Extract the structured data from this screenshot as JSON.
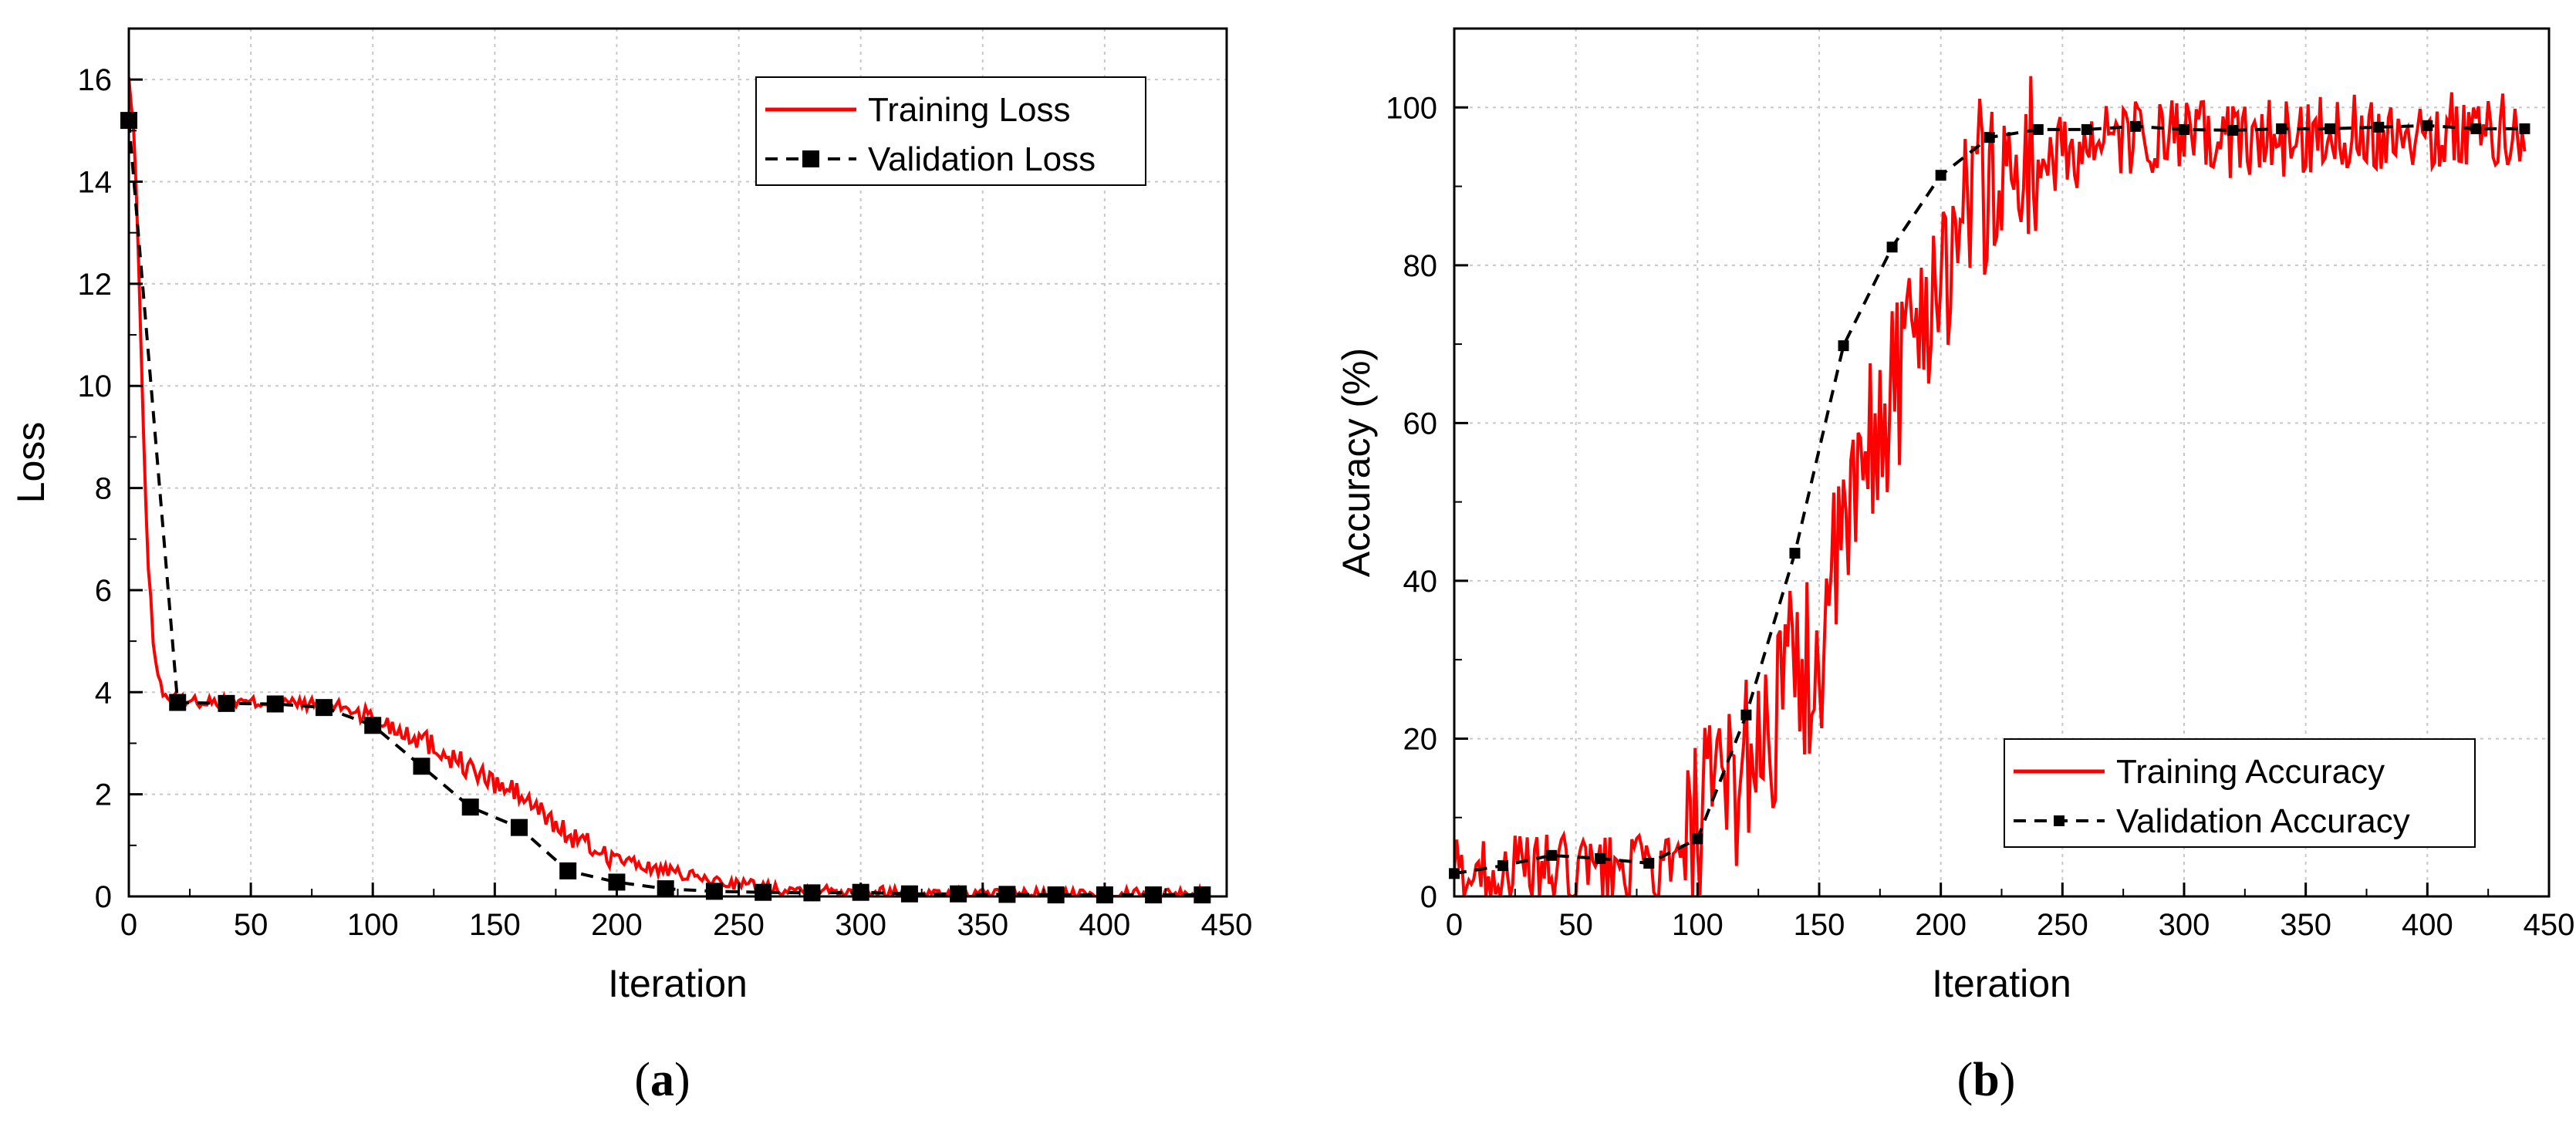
{
  "chart_data": [
    {
      "id": "a",
      "type": "line",
      "caption_letter": "a",
      "xlabel": "Iteration",
      "ylabel": "Loss",
      "xlim": [
        0,
        450
      ],
      "ylim": [
        0,
        17
      ],
      "xticks": [
        0,
        50,
        100,
        150,
        200,
        250,
        300,
        350,
        400,
        450
      ],
      "yticks": [
        0,
        2,
        4,
        6,
        8,
        10,
        12,
        14,
        16
      ],
      "grid": true,
      "legend_position": "top-right",
      "series": [
        {
          "name": "Training Loss",
          "style": "solid",
          "color": "#ff0000",
          "noise": 0.12,
          "x": [
            0,
            2,
            4,
            6,
            8,
            10,
            12,
            14,
            16,
            20,
            30,
            40,
            50,
            60,
            70,
            80,
            90,
            100,
            110,
            120,
            130,
            140,
            150,
            160,
            170,
            180,
            190,
            200,
            210,
            220,
            230,
            240,
            250,
            260,
            270,
            280,
            300,
            320,
            340,
            360,
            380,
            400,
            420,
            440
          ],
          "y": [
            16.0,
            15.0,
            12.5,
            9.0,
            6.5,
            5.0,
            4.3,
            4.0,
            3.9,
            3.85,
            3.82,
            3.8,
            3.8,
            3.8,
            3.78,
            3.75,
            3.7,
            3.5,
            3.3,
            3.1,
            2.8,
            2.5,
            2.2,
            2.0,
            1.6,
            1.2,
            0.95,
            0.75,
            0.6,
            0.5,
            0.4,
            0.3,
            0.25,
            0.2,
            0.15,
            0.12,
            0.1,
            0.07,
            0.05,
            0.05,
            0.04,
            0.04,
            0.05,
            0.05
          ]
        },
        {
          "name": "Validation Loss",
          "style": "dashed",
          "color": "#000000",
          "x": [
            0,
            10,
            20,
            40,
            60,
            80,
            100,
            120,
            140,
            160,
            180,
            200,
            220,
            240,
            260,
            280,
            300,
            320,
            340,
            360,
            380,
            400,
            420,
            440
          ],
          "y": [
            15.2,
            9.5,
            3.8,
            3.78,
            3.77,
            3.7,
            3.35,
            2.55,
            1.75,
            1.35,
            0.5,
            0.28,
            0.15,
            0.1,
            0.08,
            0.07,
            0.08,
            0.05,
            0.05,
            0.04,
            0.03,
            0.03,
            0.03,
            0.03
          ],
          "marker_x": [
            0,
            20,
            40,
            60,
            80,
            100,
            120,
            140,
            160,
            180,
            200,
            220,
            240,
            260,
            280,
            300,
            320,
            340,
            360,
            380,
            400,
            420,
            440
          ],
          "marker_y": [
            15.2,
            3.8,
            3.78,
            3.77,
            3.7,
            3.35,
            2.55,
            1.75,
            1.35,
            0.5,
            0.28,
            0.15,
            0.1,
            0.08,
            0.07,
            0.08,
            0.05,
            0.05,
            0.04,
            0.03,
            0.03,
            0.03,
            0.03
          ]
        }
      ]
    },
    {
      "id": "b",
      "type": "line",
      "caption_letter": "b",
      "xlabel": "Iteration",
      "ylabel": "Accuracy (%)",
      "xlim": [
        0,
        450
      ],
      "ylim": [
        0,
        110
      ],
      "xticks": [
        0,
        50,
        100,
        150,
        200,
        250,
        300,
        350,
        400,
        450
      ],
      "yticks": [
        0,
        20,
        40,
        60,
        80,
        100
      ],
      "grid": true,
      "legend_position": "bottom-right",
      "series": [
        {
          "name": "Training Accuracy",
          "style": "solid",
          "color": "#ff0000",
          "noise": 5.0,
          "x": [
            0,
            20,
            40,
            60,
            80,
            95,
            100,
            110,
            120,
            130,
            140,
            150,
            160,
            170,
            180,
            190,
            200,
            210,
            220,
            230,
            240,
            250,
            260,
            280,
            300,
            320,
            340,
            360,
            380,
            400,
            420,
            440
          ],
          "y": [
            3,
            3,
            3,
            3,
            3,
            4,
            8,
            12,
            18,
            22,
            28,
            30,
            45,
            55,
            65,
            72,
            80,
            88,
            90,
            92,
            93,
            94,
            95,
            96,
            96,
            96,
            96,
            97,
            97,
            97,
            97,
            97
          ]
        },
        {
          "name": "Validation Accuracy",
          "style": "dashed",
          "color": "#000000",
          "x": [
            0,
            20,
            40,
            60,
            80,
            100,
            120,
            140,
            160,
            180,
            200,
            220,
            240,
            260,
            280,
            300,
            320,
            340,
            360,
            380,
            400,
            420,
            440
          ],
          "y": [
            2.9,
            3.9,
            5.2,
            4.8,
            4.2,
            7.3,
            23.0,
            43.5,
            69.8,
            82.3,
            91.4,
            96.2,
            97.2,
            97.2,
            97.6,
            97.2,
            97.1,
            97.3,
            97.3,
            97.5,
            97.7,
            97.3,
            97.3
          ],
          "marker_x": [
            0,
            20,
            40,
            60,
            80,
            100,
            120,
            140,
            160,
            180,
            200,
            220,
            240,
            260,
            280,
            300,
            320,
            340,
            360,
            380,
            400,
            420,
            440
          ],
          "marker_y": [
            2.9,
            3.9,
            5.2,
            4.8,
            4.2,
            7.3,
            23.0,
            43.5,
            69.8,
            82.3,
            91.4,
            96.2,
            97.2,
            97.2,
            97.6,
            97.2,
            97.1,
            97.3,
            97.3,
            97.5,
            97.7,
            97.3,
            97.3
          ]
        }
      ]
    }
  ]
}
